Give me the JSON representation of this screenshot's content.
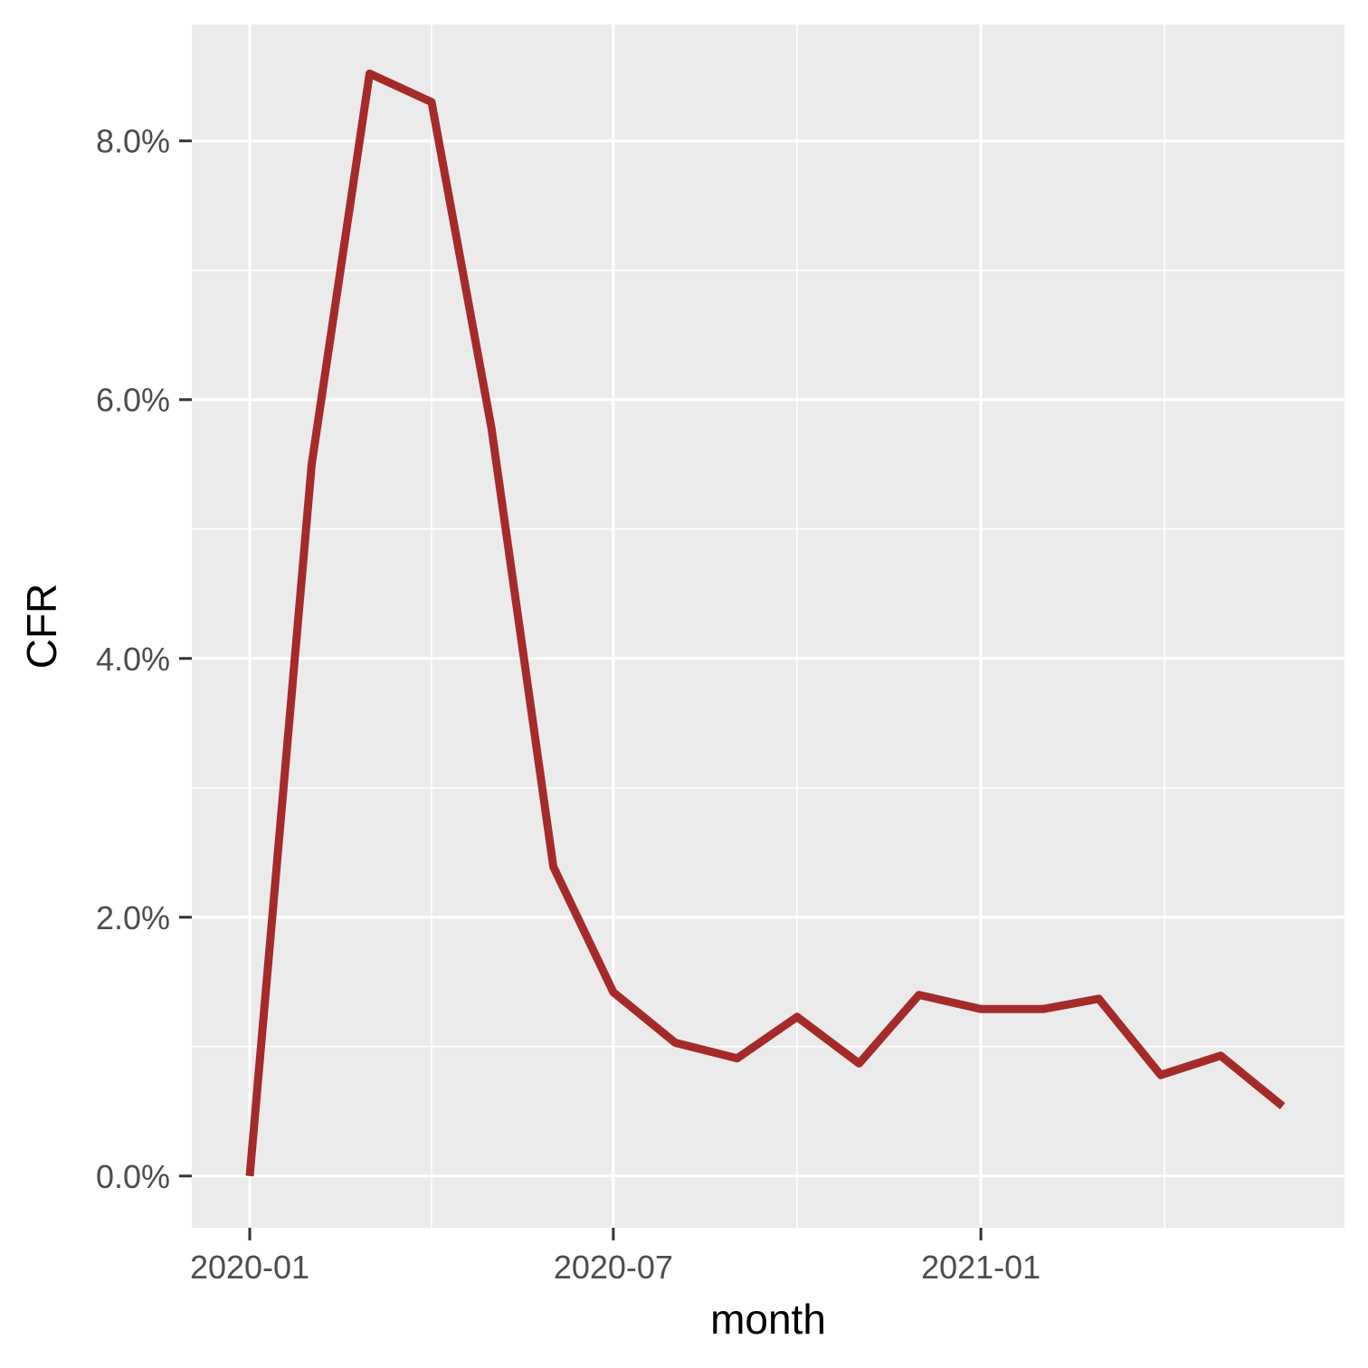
{
  "chart_data": {
    "type": "line",
    "xlabel": "month",
    "ylabel": "CFR",
    "x_ticks": [
      "2020-01",
      "2020-07",
      "2021-01"
    ],
    "y_ticks": [
      "0.0%",
      "2.0%",
      "4.0%",
      "6.0%",
      "8.0%"
    ],
    "xlim": [
      "2019-12-03",
      "2021-07-02"
    ],
    "ylim": [
      -0.4,
      8.9
    ],
    "grid": true,
    "series": [
      {
        "x": [
          "2020-01",
          "2020-02",
          "2020-03",
          "2020-04",
          "2020-05",
          "2020-06",
          "2020-07",
          "2020-08",
          "2020-09",
          "2020-10",
          "2020-11",
          "2020-12",
          "2021-01",
          "2021-02",
          "2021-03",
          "2021-04",
          "2021-05",
          "2021-06"
        ],
        "values": [
          0.0,
          5.5,
          8.52,
          8.3,
          5.78,
          2.39,
          1.42,
          1.03,
          0.91,
          1.23,
          0.87,
          1.4,
          1.29,
          1.29,
          1.37,
          0.78,
          0.93,
          0.54
        ],
        "color": "#a52a2a"
      }
    ]
  }
}
